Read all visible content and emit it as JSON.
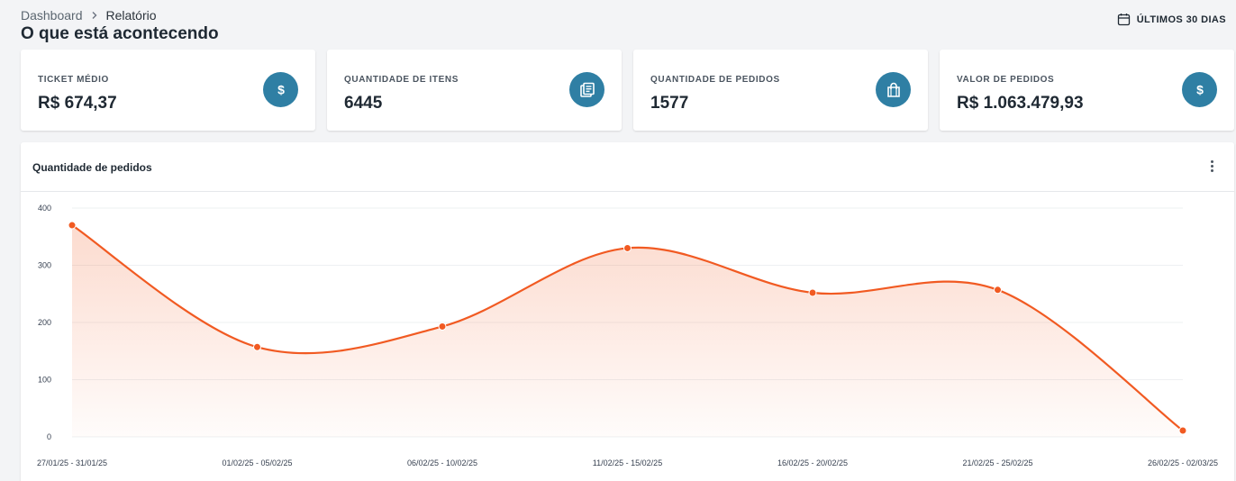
{
  "breadcrumb": {
    "items": [
      {
        "label": "Dashboard"
      },
      {
        "label": "Relatório"
      }
    ]
  },
  "page": {
    "title": "O que está acontecendo"
  },
  "period_filter": {
    "label": "ÚLTIMOS 30 DIAS",
    "icon": "calendar-icon"
  },
  "kpis": [
    {
      "label": "TICKET MÉDIO",
      "value": "R$ 674,37",
      "icon": "dollar-icon"
    },
    {
      "label": "QUANTIDADE DE ITENS",
      "value": "6445",
      "icon": "items-list-icon"
    },
    {
      "label": "QUANTIDADE DE PEDIDOS",
      "value": "1577",
      "icon": "shopping-bag-icon"
    },
    {
      "label": "VALOR DE PEDIDOS",
      "value": "R$ 1.063.479,93",
      "icon": "dollar-icon"
    }
  ],
  "colors": {
    "accent": "#2f7fa4",
    "series": "#f15a22",
    "background": "#f3f4f6"
  },
  "chart_data": {
    "type": "area",
    "title": "Quantidade de pedidos",
    "categories": [
      "27/01/25 - 31/01/25",
      "01/02/25 - 05/02/25",
      "06/02/25 - 10/02/25",
      "11/02/25 - 15/02/25",
      "16/02/25 - 20/02/25",
      "21/02/25 - 25/02/25",
      "26/02/25 - 02/03/25"
    ],
    "values": [
      370,
      157,
      193,
      330,
      252,
      257,
      11
    ],
    "ylim": [
      0,
      400
    ],
    "yticks": [
      "0",
      "100",
      "200",
      "300",
      "400"
    ],
    "grid": true,
    "smooth": true,
    "legend": "none"
  }
}
